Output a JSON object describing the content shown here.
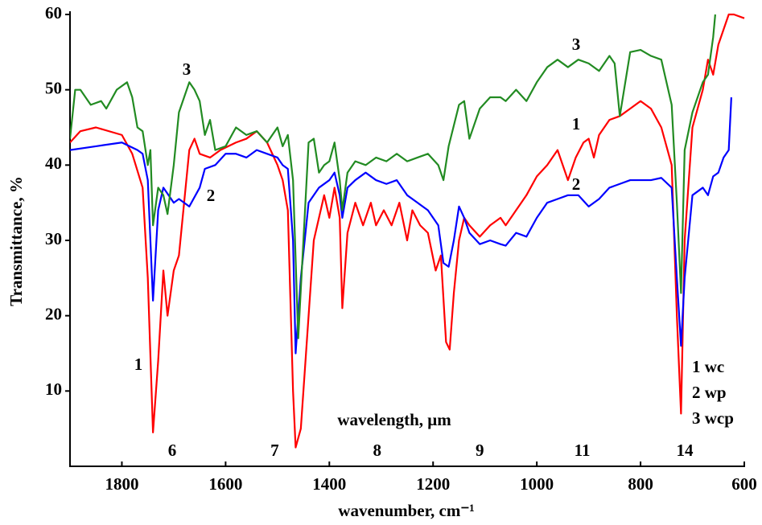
{
  "chart_data": {
    "type": "line",
    "x_label": "wavenumber, cm⁻¹",
    "y_label": "Transmittance, %",
    "x2_label": "wavelength, μm",
    "x2_categories": [
      "6",
      "7",
      "8",
      "9",
      "11",
      "14"
    ],
    "xlim": [
      1900,
      600
    ],
    "xticks": [
      1800,
      1600,
      1400,
      1200,
      1000,
      800,
      600
    ],
    "ylim": [
      0,
      60
    ],
    "yticks": [
      10,
      20,
      30,
      40,
      50,
      60
    ],
    "annotations": [
      "1",
      "2",
      "3",
      "1",
      "2",
      "3"
    ],
    "series": [
      {
        "name": "1 wc",
        "color": "#ff0000",
        "x": [
          1900,
          1880,
          1850,
          1800,
          1780,
          1760,
          1750,
          1740,
          1730,
          1720,
          1712,
          1700,
          1690,
          1680,
          1670,
          1660,
          1650,
          1630,
          1610,
          1580,
          1560,
          1540,
          1520,
          1500,
          1490,
          1480,
          1470,
          1465,
          1455,
          1440,
          1430,
          1410,
          1400,
          1390,
          1380,
          1375,
          1365,
          1350,
          1335,
          1320,
          1310,
          1295,
          1280,
          1265,
          1250,
          1240,
          1225,
          1210,
          1195,
          1185,
          1175,
          1168,
          1160,
          1150,
          1140,
          1130,
          1110,
          1090,
          1070,
          1060,
          1040,
          1020,
          1000,
          980,
          960,
          950,
          940,
          925,
          910,
          900,
          890,
          880,
          860,
          840,
          820,
          800,
          780,
          760,
          740,
          730,
          722,
          715,
          700,
          680,
          670,
          660,
          650,
          640,
          630,
          620,
          600
        ],
        "values": [
          43,
          44.5,
          45,
          44,
          41.5,
          37,
          25,
          4.5,
          14,
          26,
          20,
          26,
          28,
          35,
          42,
          43.5,
          41.5,
          41,
          42,
          43,
          43.5,
          44.5,
          43,
          40,
          38,
          34,
          10,
          2.5,
          5,
          20,
          30,
          36,
          33,
          37,
          33,
          21,
          31,
          35,
          32,
          35,
          32,
          34,
          32,
          35,
          30,
          34,
          32,
          31,
          26,
          28,
          16.5,
          15.5,
          23,
          30,
          33,
          32,
          30.5,
          32,
          33,
          32,
          34,
          36,
          38.5,
          40,
          42,
          40,
          38,
          41,
          43,
          43.5,
          41,
          44,
          46,
          46.5,
          47.5,
          48.5,
          47.5,
          45,
          40,
          20,
          7,
          30,
          45,
          50,
          54,
          52,
          56,
          58,
          60,
          60,
          59.5
        ]
      },
      {
        "name": "2 wp",
        "color": "#0000ff",
        "x": [
          1900,
          1850,
          1800,
          1770,
          1760,
          1750,
          1740,
          1730,
          1720,
          1700,
          1690,
          1680,
          1670,
          1650,
          1640,
          1620,
          1600,
          1580,
          1560,
          1540,
          1520,
          1500,
          1490,
          1480,
          1470,
          1465,
          1455,
          1440,
          1420,
          1400,
          1390,
          1380,
          1375,
          1365,
          1350,
          1330,
          1310,
          1290,
          1270,
          1250,
          1230,
          1210,
          1190,
          1180,
          1170,
          1160,
          1150,
          1140,
          1130,
          1110,
          1090,
          1070,
          1060,
          1040,
          1020,
          1000,
          980,
          960,
          940,
          920,
          900,
          880,
          860,
          840,
          820,
          800,
          780,
          760,
          740,
          730,
          722,
          715,
          700,
          680,
          670,
          660,
          650,
          640,
          630,
          625
        ],
        "values": [
          42,
          42.5,
          43,
          42,
          41.5,
          38,
          22,
          34,
          37,
          35,
          35.5,
          35,
          34.5,
          37,
          39.5,
          40,
          41.5,
          41.5,
          41,
          42,
          41.5,
          41,
          40,
          39.5,
          30,
          15,
          25,
          35,
          37,
          38,
          39,
          36,
          33,
          37,
          38,
          39,
          38,
          37.5,
          38,
          36,
          35,
          34,
          32,
          27,
          26.5,
          30,
          34.5,
          33,
          31,
          29.5,
          30,
          29.5,
          29.3,
          31,
          30.5,
          33,
          35,
          35.5,
          36,
          36,
          34.5,
          35.5,
          37,
          37.5,
          38,
          38,
          38,
          38.3,
          37,
          25,
          16,
          25,
          36,
          37,
          36,
          38.5,
          39,
          41,
          42,
          49
        ]
      },
      {
        "name": "3 wcp",
        "color": "#228b22",
        "x": [
          1900,
          1890,
          1880,
          1860,
          1840,
          1830,
          1810,
          1790,
          1780,
          1770,
          1760,
          1750,
          1745,
          1740,
          1730,
          1720,
          1712,
          1700,
          1690,
          1680,
          1670,
          1660,
          1650,
          1640,
          1630,
          1620,
          1600,
          1580,
          1560,
          1540,
          1520,
          1500,
          1490,
          1480,
          1470,
          1460,
          1450,
          1440,
          1430,
          1420,
          1410,
          1400,
          1390,
          1380,
          1375,
          1365,
          1350,
          1330,
          1310,
          1290,
          1270,
          1250,
          1230,
          1210,
          1190,
          1180,
          1170,
          1150,
          1140,
          1130,
          1110,
          1090,
          1070,
          1060,
          1040,
          1020,
          1000,
          980,
          960,
          940,
          920,
          900,
          880,
          860,
          850,
          840,
          820,
          800,
          780,
          760,
          740,
          730,
          722,
          715,
          700,
          680,
          670,
          660,
          656
        ],
        "values": [
          43.5,
          50,
          50,
          48,
          48.5,
          47.5,
          50,
          51,
          49,
          45,
          44.5,
          40,
          42,
          32,
          37,
          36,
          33.5,
          40,
          47,
          49,
          51,
          50,
          48.5,
          44,
          46,
          42,
          42.5,
          45,
          44,
          44.5,
          43,
          45,
          42.5,
          44,
          38,
          17,
          30,
          43,
          43.5,
          39,
          40,
          40.5,
          43,
          38,
          34,
          39,
          40.5,
          40,
          41,
          40.5,
          41.5,
          40.5,
          41,
          41.5,
          40,
          38,
          42.5,
          48,
          48.5,
          43.5,
          47.5,
          49,
          49,
          48.5,
          50,
          48.5,
          51,
          53,
          54,
          53,
          54,
          53.5,
          52.5,
          54.5,
          53.5,
          46.5,
          55,
          55.3,
          54.5,
          54,
          48,
          35,
          23,
          42,
          47,
          51,
          52,
          57,
          60
        ]
      }
    ]
  }
}
